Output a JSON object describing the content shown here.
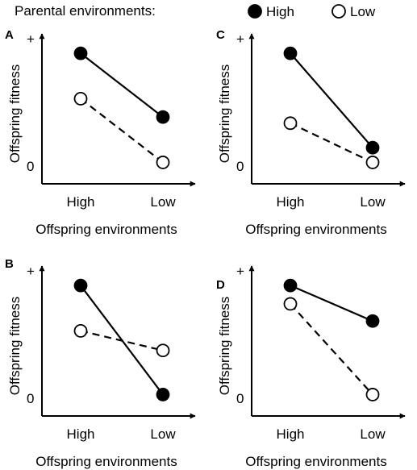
{
  "legend": {
    "title": "Parental environments:",
    "items": [
      {
        "label": "High",
        "marker": "filled-circle",
        "color": "#000000"
      },
      {
        "label": "Low",
        "marker": "open-circle",
        "color": "#000000"
      }
    ]
  },
  "chart_data": [
    {
      "panel": "A",
      "type": "line",
      "categories": [
        "High",
        "Low"
      ],
      "xlabel": "Offspring environments",
      "ylabel": "Offspring fitness",
      "ytick_top": "+",
      "ytick_bottom": "0",
      "ylim": [
        0,
        1
      ],
      "series": [
        {
          "name": "High",
          "values": [
            0.92,
            0.4
          ],
          "style": "solid",
          "marker": "filled"
        },
        {
          "name": "Low",
          "values": [
            0.55,
            0.03
          ],
          "style": "dashed",
          "marker": "open"
        }
      ]
    },
    {
      "panel": "C",
      "type": "line",
      "categories": [
        "High",
        "Low"
      ],
      "xlabel": "Offspring environments",
      "ylabel": "Offspring fitness",
      "ytick_top": "+",
      "ytick_bottom": "0",
      "ylim": [
        0,
        1
      ],
      "series": [
        {
          "name": "High",
          "values": [
            0.92,
            0.15
          ],
          "style": "solid",
          "marker": "filled"
        },
        {
          "name": "Low",
          "values": [
            0.35,
            0.03
          ],
          "style": "dashed",
          "marker": "open"
        }
      ]
    },
    {
      "panel": "B",
      "type": "line",
      "categories": [
        "High",
        "Low"
      ],
      "xlabel": "Offspring environments",
      "ylabel": "Offspring fitness",
      "ytick_top": "+",
      "ytick_bottom": "0",
      "ylim": [
        0,
        1
      ],
      "series": [
        {
          "name": "High",
          "values": [
            0.92,
            0.03
          ],
          "style": "solid",
          "marker": "filled"
        },
        {
          "name": "Low",
          "values": [
            0.55,
            0.39
          ],
          "style": "dashed",
          "marker": "open"
        }
      ]
    },
    {
      "panel": "D",
      "type": "line",
      "categories": [
        "High",
        "Low"
      ],
      "xlabel": "Offspring environments",
      "ylabel": "Offspring fitness",
      "ytick_top": "+",
      "ytick_bottom": "0",
      "ylim": [
        0,
        1
      ],
      "series": [
        {
          "name": "High",
          "values": [
            0.92,
            0.63
          ],
          "style": "solid",
          "marker": "filled"
        },
        {
          "name": "Low",
          "values": [
            0.77,
            0.03
          ],
          "style": "dashed",
          "marker": "open"
        }
      ]
    }
  ]
}
